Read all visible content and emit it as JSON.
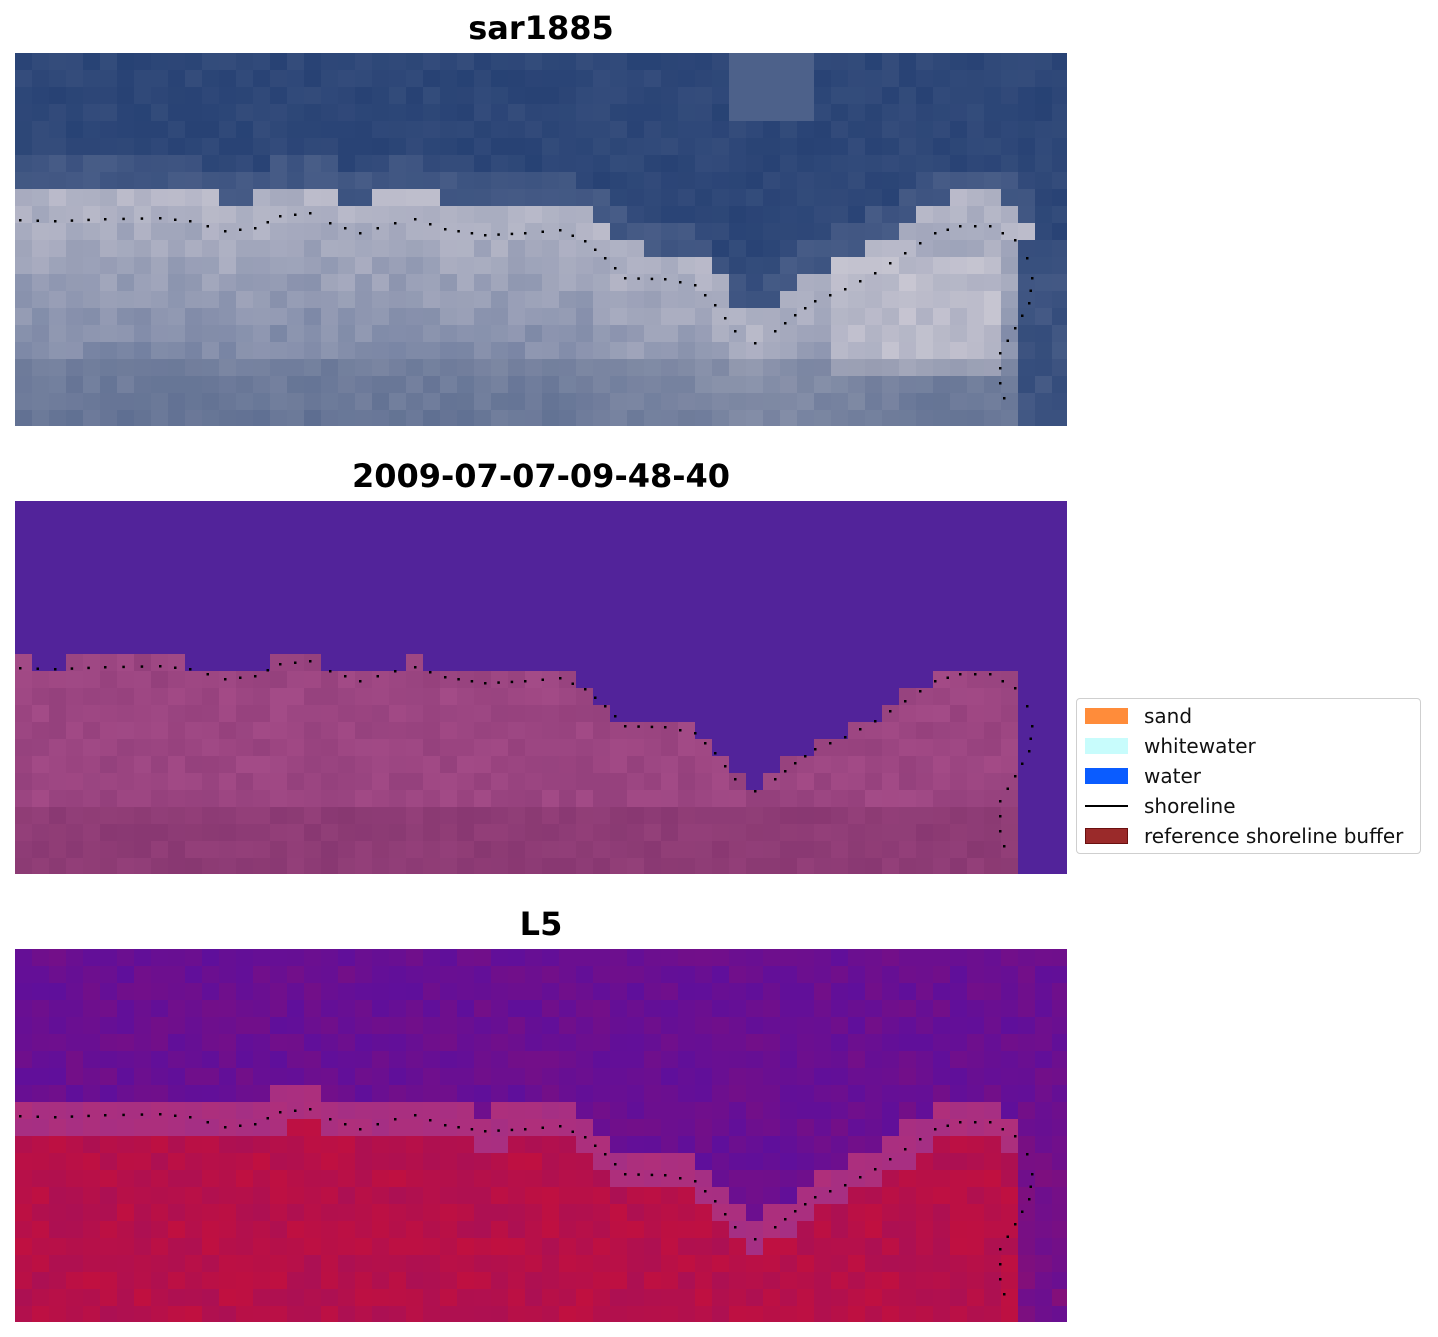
{
  "panels": [
    {
      "title": "sar1885",
      "kind": "rgb"
    },
    {
      "title": "2009-07-07-09-48-40",
      "kind": "classified"
    },
    {
      "title": "L5",
      "kind": "index"
    }
  ],
  "legend": {
    "items": [
      {
        "label": "sand",
        "color": "#ff8c3a",
        "kind": "patch"
      },
      {
        "label": "whitewater",
        "color": "#c8fcfc",
        "kind": "patch"
      },
      {
        "label": "water",
        "color": "#0a5cff",
        "kind": "patch"
      },
      {
        "label": "shoreline",
        "color": "#000000",
        "kind": "line"
      },
      {
        "label": "reference shoreline buffer",
        "color": "#9a2a2a",
        "kind": "patch"
      }
    ]
  },
  "colors": {
    "water_dark": "#243f72",
    "foam": "#c8c6d2",
    "classified_water": "#52239a",
    "classified_buffer": "#8b3a76",
    "index_low": "#5a0fa0",
    "index_high": "#c01040"
  }
}
